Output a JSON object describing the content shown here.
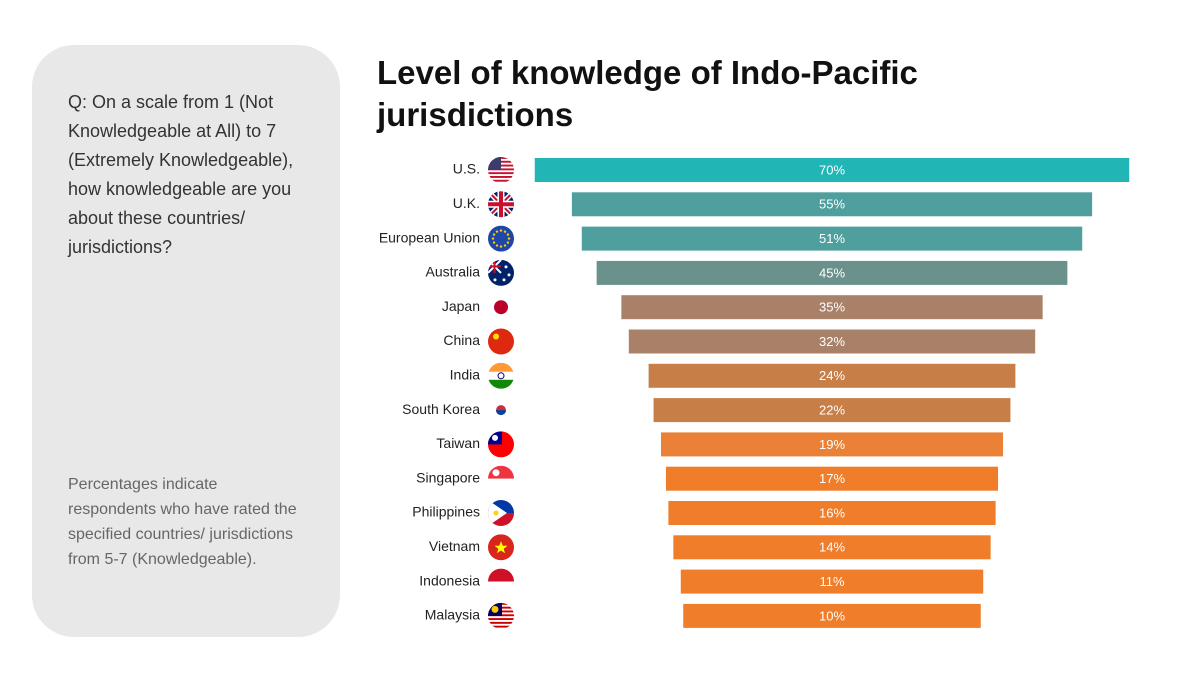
{
  "panel": {
    "question": "Q: On a scale from 1 (Not Knowledgeable at All) to 7 (Extremely Knowledgeable), how knowledgeable are you about these countries/ jurisdictions?",
    "note": "Percentages indicate respondents who have rated the specified countries/ jurisdictions from 5-7 (Knowledgeable)."
  },
  "chart_data": {
    "type": "bar",
    "orientation": "horizontal",
    "alignment": "center",
    "title": "Level of knowledge of Indo-Pacific jurisdictions",
    "categories": [
      "U.S.",
      "U.K.",
      "European Union",
      "Australia",
      "Japan",
      "China",
      "India",
      "South Korea",
      "Taiwan",
      "Singapore",
      "Philippines",
      "Vietnam",
      "Indonesia",
      "Malaysia"
    ],
    "values": [
      70,
      55,
      51,
      45,
      35,
      32,
      24,
      22,
      19,
      17,
      16,
      14,
      11,
      10
    ],
    "value_labels": [
      "70%",
      "55%",
      "51%",
      "45%",
      "35%",
      "32%",
      "24%",
      "22%",
      "19%",
      "17%",
      "16%",
      "14%",
      "11%",
      "10%"
    ],
    "colors": [
      "#21b6b5",
      "#4e9f9e",
      "#4e9f9e",
      "#6a918c",
      "#a88168",
      "#a88168",
      "#c87e47",
      "#c87e47",
      "#ea8136",
      "#ef7d29",
      "#ef7d29",
      "#ef7d29",
      "#ef7d29",
      "#ef7d29"
    ]
  }
}
